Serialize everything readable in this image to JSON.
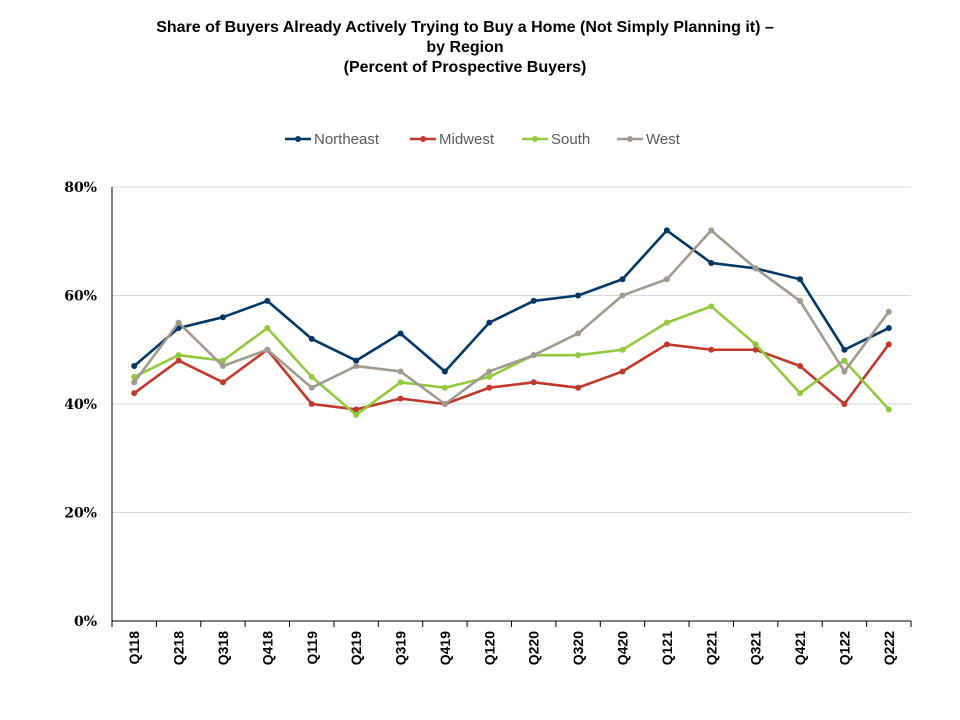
{
  "chart_data": {
    "type": "line",
    "title": [
      "Share of Buyers Already Actively Trying to Buy a Home (Not Simply Planning it) –",
      "by Region",
      "(Percent of Prospective Buyers)"
    ],
    "categories": [
      "Q118",
      "Q218",
      "Q318",
      "Q418",
      "Q119",
      "Q219",
      "Q319",
      "Q419",
      "Q120",
      "Q220",
      "Q320",
      "Q420",
      "Q121",
      "Q221",
      "Q321",
      "Q421",
      "Q122",
      "Q222"
    ],
    "y_ticks": [
      "0%",
      "20%",
      "40%",
      "60%",
      "80%"
    ],
    "ylim": [
      0,
      80
    ],
    "grid": true,
    "legend_position": "top-center",
    "series": [
      {
        "name": "Northeast",
        "color": "#003865",
        "values": [
          47,
          54,
          56,
          59,
          52,
          48,
          53,
          46,
          55,
          59,
          60,
          63,
          72,
          66,
          65,
          63,
          50,
          54
        ]
      },
      {
        "name": "Midwest",
        "color": "#C0392B",
        "values": [
          42,
          48,
          44,
          50,
          40,
          39,
          41,
          40,
          43,
          44,
          43,
          46,
          51,
          50,
          50,
          47,
          40,
          51
        ]
      },
      {
        "name": "South",
        "color": "#92C83E",
        "values": [
          45,
          49,
          48,
          54,
          45,
          38,
          44,
          43,
          45,
          49,
          49,
          50,
          55,
          58,
          51,
          42,
          48,
          39
        ]
      },
      {
        "name": "West",
        "color": "#A09A8F",
        "values": [
          44,
          55,
          47,
          50,
          43,
          47,
          46,
          40,
          46,
          49,
          53,
          60,
          63,
          72,
          65,
          59,
          46,
          57
        ]
      }
    ]
  }
}
